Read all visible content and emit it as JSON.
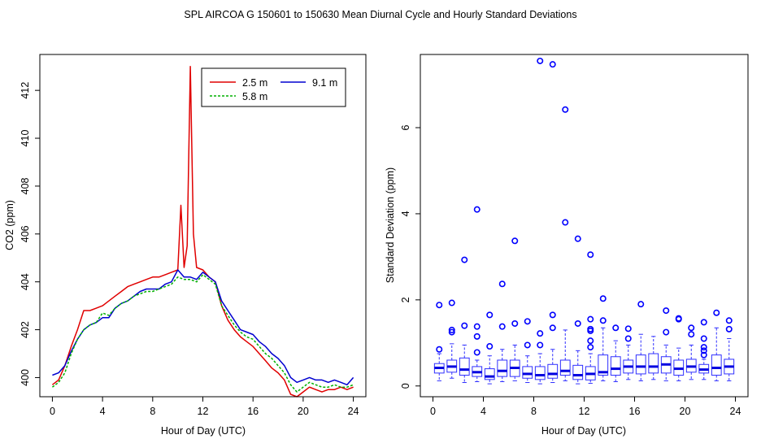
{
  "figure_title": "SPL   AIRCOA G   150601 to 150630   Mean Diurnal Cycle and Hourly Standard Deviations",
  "colors": {
    "red": "#e00000",
    "green": "#00b000",
    "blue": "#0000d0",
    "box": "#3030ff",
    "outlier": "#0000ff",
    "axis": "#000000"
  },
  "chart_data": [
    {
      "type": "line",
      "title": "",
      "xlabel": "Hour of Day (UTC)",
      "ylabel": "CO2 (ppm)",
      "xlim": [
        -1,
        25
      ],
      "ylim": [
        399.2,
        413.5
      ],
      "x_ticks": [
        0,
        4,
        8,
        12,
        16,
        20,
        24
      ],
      "y_ticks": [
        400,
        402,
        404,
        406,
        408,
        410,
        412
      ],
      "legend": {
        "position": "top-right",
        "entries": [
          {
            "label": "2.5 m",
            "color": "#e00000"
          },
          {
            "label": "5.8 m",
            "color": "#00b000",
            "dashed": true
          },
          {
            "label": "9.1 m",
            "color": "#0000d0"
          }
        ]
      },
      "series": [
        {
          "name": "2.5 m",
          "color": "#e00000",
          "x": [
            0,
            0.5,
            1,
            1.5,
            2,
            2.5,
            3,
            3.5,
            4,
            4.5,
            5,
            5.5,
            6,
            6.5,
            7,
            7.5,
            8,
            8.5,
            9,
            9.5,
            10,
            10.25,
            10.5,
            10.75,
            11,
            11.25,
            11.5,
            12,
            12.5,
            13,
            13.5,
            14,
            14.5,
            15,
            15.5,
            16,
            16.5,
            17,
            17.5,
            18,
            18.5,
            19,
            19.5,
            20,
            20.5,
            21,
            21.5,
            22,
            22.5,
            23,
            23.5,
            24
          ],
          "y": [
            399.7,
            399.9,
            400.5,
            401.3,
            402.0,
            402.8,
            402.8,
            402.9,
            403.0,
            403.2,
            403.4,
            403.6,
            403.8,
            403.9,
            404.0,
            404.1,
            404.2,
            404.2,
            404.3,
            404.4,
            404.5,
            407.2,
            404.6,
            405.5,
            413.0,
            406.0,
            404.6,
            404.5,
            404.2,
            404.0,
            403.0,
            402.4,
            402.0,
            401.7,
            401.5,
            401.3,
            401.0,
            400.7,
            400.4,
            400.2,
            399.9,
            399.3,
            399.2,
            399.4,
            399.6,
            399.5,
            399.4,
            399.5,
            399.5,
            399.6,
            399.5,
            399.6
          ]
        },
        {
          "name": "5.8 m",
          "color": "#00b000",
          "x": [
            0,
            0.5,
            1,
            1.5,
            2,
            2.5,
            3,
            3.5,
            4,
            4.5,
            5,
            5.5,
            6,
            6.5,
            7,
            7.5,
            8,
            8.5,
            9,
            9.5,
            10,
            10.5,
            11,
            11.5,
            12,
            12.5,
            13,
            13.5,
            14,
            14.5,
            15,
            15.5,
            16,
            16.5,
            17,
            17.5,
            18,
            18.5,
            19,
            19.5,
            20,
            20.5,
            21,
            21.5,
            22,
            22.5,
            23,
            23.5,
            24
          ],
          "y": [
            399.6,
            399.8,
            400.2,
            401.0,
            401.6,
            402.0,
            402.2,
            402.3,
            402.7,
            402.6,
            402.9,
            403.1,
            403.2,
            403.4,
            403.5,
            403.6,
            403.6,
            403.7,
            403.8,
            403.9,
            404.2,
            404.1,
            404.1,
            404.0,
            404.3,
            404.1,
            403.9,
            403.0,
            402.6,
            402.2,
            401.9,
            401.7,
            401.6,
            401.3,
            401.0,
            400.8,
            400.5,
            400.2,
            399.7,
            399.4,
            399.6,
            399.8,
            399.7,
            399.6,
            399.6,
            399.7,
            399.6,
            399.6,
            399.7
          ]
        },
        {
          "name": "9.1 m",
          "color": "#0000d0",
          "x": [
            0,
            0.5,
            1,
            1.5,
            2,
            2.5,
            3,
            3.5,
            4,
            4.5,
            5,
            5.5,
            6,
            6.5,
            7,
            7.5,
            8,
            8.5,
            9,
            9.5,
            10,
            10.5,
            11,
            11.5,
            12,
            12.5,
            13,
            13.5,
            14,
            14.5,
            15,
            15.5,
            16,
            16.5,
            17,
            17.5,
            18,
            18.5,
            19,
            19.5,
            20,
            20.5,
            21,
            21.5,
            22,
            22.5,
            23,
            23.5,
            24
          ],
          "y": [
            400.1,
            400.2,
            400.5,
            401.1,
            401.6,
            402.0,
            402.2,
            402.3,
            402.5,
            402.5,
            402.9,
            403.1,
            403.2,
            403.4,
            403.6,
            403.7,
            403.7,
            403.7,
            403.9,
            404.0,
            404.5,
            404.2,
            404.2,
            404.1,
            404.4,
            404.2,
            404.0,
            403.2,
            402.8,
            402.4,
            402.0,
            401.9,
            401.8,
            401.5,
            401.3,
            401.0,
            400.8,
            400.5,
            400.0,
            399.8,
            399.9,
            400.0,
            399.9,
            399.9,
            399.8,
            399.9,
            399.8,
            399.7,
            400.0
          ]
        }
      ]
    },
    {
      "type": "boxplot",
      "title": "",
      "xlabel": "Hour of Day (UTC)",
      "ylabel": "Standard Deviation (ppm)",
      "xlim": [
        -1,
        25
      ],
      "ylim": [
        -0.25,
        7.7
      ],
      "x_ticks": [
        0,
        4,
        8,
        12,
        16,
        20,
        24
      ],
      "y_ticks": [
        0,
        2,
        4,
        6
      ],
      "boxes": [
        {
          "x": 0.5,
          "min": 0.12,
          "q1": 0.3,
          "median": 0.42,
          "q3": 0.52,
          "max": 0.75,
          "outliers": [
            0.85,
            1.88
          ]
        },
        {
          "x": 1.5,
          "min": 0.18,
          "q1": 0.32,
          "median": 0.45,
          "q3": 0.6,
          "max": 0.98,
          "outliers": [
            1.25,
            1.3,
            1.93
          ]
        },
        {
          "x": 2.5,
          "min": 0.08,
          "q1": 0.25,
          "median": 0.38,
          "q3": 0.65,
          "max": 0.95,
          "outliers": [
            1.4,
            2.93
          ]
        },
        {
          "x": 3.5,
          "min": 0.1,
          "q1": 0.22,
          "median": 0.32,
          "q3": 0.45,
          "max": 0.6,
          "outliers": [
            0.78,
            1.15,
            1.38,
            4.1
          ]
        },
        {
          "x": 4.5,
          "min": 0.05,
          "q1": 0.15,
          "median": 0.22,
          "q3": 0.4,
          "max": 0.7,
          "outliers": [
            0.92,
            1.65
          ]
        },
        {
          "x": 5.5,
          "min": 0.1,
          "q1": 0.22,
          "median": 0.35,
          "q3": 0.6,
          "max": 0.85,
          "outliers": [
            1.38,
            2.37
          ]
        },
        {
          "x": 6.5,
          "min": 0.12,
          "q1": 0.22,
          "median": 0.42,
          "q3": 0.6,
          "max": 0.95,
          "outliers": [
            1.45,
            3.37
          ]
        },
        {
          "x": 7.5,
          "min": 0.08,
          "q1": 0.18,
          "median": 0.28,
          "q3": 0.45,
          "max": 0.7,
          "outliers": [
            0.95,
            1.5
          ]
        },
        {
          "x": 8.5,
          "min": 0.05,
          "q1": 0.15,
          "median": 0.25,
          "q3": 0.45,
          "max": 0.75,
          "outliers": [
            0.95,
            1.22,
            7.55
          ]
        },
        {
          "x": 9.5,
          "min": 0.08,
          "q1": 0.18,
          "median": 0.28,
          "q3": 0.5,
          "max": 0.85,
          "outliers": [
            1.35,
            1.65,
            7.47
          ]
        },
        {
          "x": 10.5,
          "min": 0.12,
          "q1": 0.25,
          "median": 0.35,
          "q3": 0.6,
          "max": 1.3,
          "outliers": [
            3.8,
            6.42
          ]
        },
        {
          "x": 11.5,
          "min": 0.05,
          "q1": 0.15,
          "median": 0.25,
          "q3": 0.48,
          "max": 0.82,
          "outliers": [
            1.45,
            3.42
          ]
        },
        {
          "x": 12.5,
          "min": 0.06,
          "q1": 0.14,
          "median": 0.28,
          "q3": 0.45,
          "max": 0.75,
          "outliers": [
            0.9,
            1.05,
            1.28,
            1.32,
            1.55,
            3.05
          ]
        },
        {
          "x": 13.5,
          "min": 0.12,
          "q1": 0.25,
          "median": 0.32,
          "q3": 0.72,
          "max": 1.35,
          "outliers": [
            1.52,
            2.03
          ]
        },
        {
          "x": 14.5,
          "min": 0.1,
          "q1": 0.25,
          "median": 0.4,
          "q3": 0.68,
          "max": 1.05,
          "outliers": [
            1.35
          ]
        },
        {
          "x": 15.5,
          "min": 0.15,
          "q1": 0.3,
          "median": 0.45,
          "q3": 0.6,
          "max": 0.95,
          "outliers": [
            1.1,
            1.33
          ]
        },
        {
          "x": 16.5,
          "min": 0.12,
          "q1": 0.28,
          "median": 0.45,
          "q3": 0.72,
          "max": 1.2,
          "outliers": [
            1.9
          ]
        },
        {
          "x": 17.5,
          "min": 0.15,
          "q1": 0.3,
          "median": 0.45,
          "q3": 0.75,
          "max": 1.15,
          "outliers": []
        },
        {
          "x": 18.5,
          "min": 0.12,
          "q1": 0.3,
          "median": 0.5,
          "q3": 0.68,
          "max": 0.95,
          "outliers": [
            1.25,
            1.75
          ]
        },
        {
          "x": 19.5,
          "min": 0.12,
          "q1": 0.25,
          "median": 0.4,
          "q3": 0.6,
          "max": 0.88,
          "outliers": [
            1.55,
            1.57
          ]
        },
        {
          "x": 20.5,
          "min": 0.15,
          "q1": 0.32,
          "median": 0.45,
          "q3": 0.62,
          "max": 0.95,
          "outliers": [
            1.2,
            1.35
          ]
        },
        {
          "x": 21.5,
          "min": 0.15,
          "q1": 0.3,
          "median": 0.38,
          "q3": 0.5,
          "max": 0.62,
          "outliers": [
            0.72,
            0.82,
            0.9,
            1.1,
            1.48
          ]
        },
        {
          "x": 22.5,
          "min": 0.12,
          "q1": 0.25,
          "median": 0.42,
          "q3": 0.72,
          "max": 1.35,
          "outliers": [
            1.7
          ]
        },
        {
          "x": 23.5,
          "min": 0.12,
          "q1": 0.28,
          "median": 0.45,
          "q3": 0.62,
          "max": 1.1,
          "outliers": [
            1.32,
            1.52
          ]
        }
      ]
    }
  ]
}
